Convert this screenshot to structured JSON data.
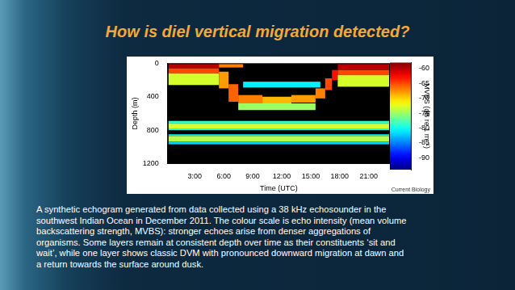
{
  "slide": {
    "title": "How is diel vertical migration detected?",
    "caption_lines": [
      "A synthetic echogram generated from data collected using a 38 kHz echosounder in the",
      "southwest Indian Ocean in December 2011. The colour scale is echo intensity (mean volume",
      "backscattering strength, MVBS): stronger echoes arise from denser aggregations of",
      "organisms. Some layers remain at consistent depth over time as their constituents ‘sit and",
      "wait’, while one layer shows classic DVM with pronounced downward migration at dawn and",
      "a return towards the surface around dusk."
    ]
  },
  "chart_data": {
    "type": "heatmap",
    "x_label": "Time (UTC)",
    "y_label": "Depth (m)",
    "annotations": [
      "Current Biology"
    ],
    "xlim": [
      0.2,
      23.2
    ],
    "xticks": [
      {
        "value": 3,
        "label": "3:00"
      },
      {
        "value": 6,
        "label": "6:00"
      },
      {
        "value": 9,
        "label": "9:00"
      },
      {
        "value": 12,
        "label": "12:00"
      },
      {
        "value": 15,
        "label": "15:00"
      },
      {
        "value": 18,
        "label": "18:00"
      },
      {
        "value": 21,
        "label": "21:00"
      }
    ],
    "ylim": [
      1200,
      0
    ],
    "yticks": [
      0,
      400,
      800,
      1200
    ],
    "grid": false,
    "cells": [
      [
        0,
        5.5,
        0,
        60,
        -60
      ],
      [
        0,
        5.5,
        60,
        120,
        -65
      ],
      [
        0,
        5.5,
        120,
        260,
        -73
      ],
      [
        5.5,
        8,
        0,
        50,
        -67
      ],
      [
        5.5,
        6.5,
        100,
        300,
        -68
      ],
      [
        6.5,
        7.5,
        250,
        460,
        -66
      ],
      [
        7.5,
        10,
        380,
        480,
        -67
      ],
      [
        10,
        13,
        400,
        500,
        -69
      ],
      [
        13,
        15.5,
        380,
        470,
        -68
      ],
      [
        7.5,
        15.5,
        480,
        560,
        -75
      ],
      [
        8,
        16,
        220,
        290,
        -81
      ],
      [
        15.5,
        16.5,
        300,
        420,
        -67
      ],
      [
        16.5,
        17.2,
        180,
        320,
        -65
      ],
      [
        17.2,
        17.8,
        80,
        200,
        -63
      ],
      [
        17.8,
        24,
        0,
        80,
        -60
      ],
      [
        17.8,
        24,
        80,
        140,
        -65
      ],
      [
        17.8,
        24,
        140,
        280,
        -73
      ],
      [
        0,
        24,
        690,
        720,
        -79
      ],
      [
        0,
        24,
        720,
        780,
        -73
      ],
      [
        0,
        24,
        780,
        800,
        -80
      ],
      [
        0,
        24,
        850,
        870,
        -81
      ],
      [
        0,
        24,
        870,
        940,
        -74
      ],
      [
        0,
        24,
        940,
        970,
        -82
      ]
    ],
    "colorbar": {
      "label": "MVBS (dB re 1 m⁻¹)",
      "range": [
        -94,
        -58
      ],
      "ticks": [
        -60,
        -65,
        -70,
        -75,
        -80,
        -85,
        -90
      ]
    }
  }
}
